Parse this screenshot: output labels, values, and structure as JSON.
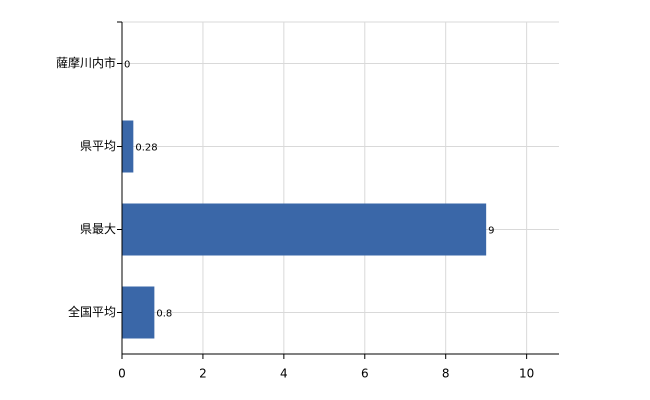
{
  "chart_data": {
    "type": "barh",
    "categories": [
      "薩摩川内市",
      "県平均",
      "県最大",
      "全国平均"
    ],
    "values": [
      0,
      0.28,
      9,
      0.8
    ],
    "color": "#3a67a8",
    "xlim": [
      0,
      10.8
    ],
    "xticks": [
      0,
      2,
      4,
      6,
      8,
      10
    ],
    "grid": true
  }
}
